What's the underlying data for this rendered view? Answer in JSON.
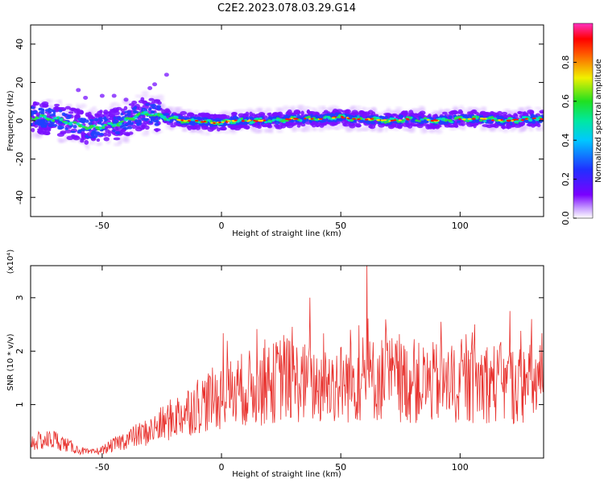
{
  "title": "C2E2.2023.078.03.29.G14",
  "colors": {
    "snr_line": "#e8322e",
    "spectrogram_low": "#6a00ff",
    "spectrogram_mid": "#00e0c0",
    "spectrogram_high": "#ff0000"
  },
  "chart_data": [
    {
      "type": "heatmap",
      "name": "spectrogram",
      "xlabel": "Height of straight line (km)",
      "ylabel": "Frequency (Hz)",
      "xlim": [
        -80,
        135
      ],
      "ylim": [
        -50,
        50
      ],
      "xticks": [
        -50,
        0,
        50,
        100
      ],
      "yticks": [
        -40,
        -20,
        0,
        20,
        40
      ],
      "grid": false,
      "colorbar": {
        "label": "Normalized spectral amplitude",
        "range": [
          0,
          1
        ],
        "ticks": [
          0.0,
          0.2,
          0.4,
          0.6,
          0.8
        ],
        "colormap": "rainbow (violet-blue-cyan-green-yellow-red-magenta)"
      },
      "ridge": {
        "x": [
          -78,
          -70,
          -60,
          -55,
          -50,
          -45,
          -40,
          -35,
          -30,
          -25,
          -20,
          -15,
          -10,
          -5,
          0,
          5,
          10,
          20,
          30,
          40,
          50,
          55,
          60,
          70,
          80,
          90,
          100,
          110,
          120,
          130,
          135
        ],
        "y": [
          2,
          1,
          -2,
          -4,
          -3,
          -2,
          0,
          3,
          4,
          2,
          1,
          0,
          0,
          -1,
          -1,
          0,
          0,
          0,
          1,
          1,
          2,
          1,
          1,
          0,
          1,
          0,
          1,
          1,
          0,
          1,
          1
        ]
      }
    },
    {
      "type": "line",
      "name": "snr",
      "xlabel": "Height of straight line (km)",
      "ylabel": "SNR (10 * v/v)",
      "scale_label": "(x10⁴)",
      "xlim": [
        -80,
        135
      ],
      "ylim": [
        0,
        3.6
      ],
      "xticks": [
        -50,
        0,
        50,
        100
      ],
      "yticks": [
        1,
        2,
        3
      ],
      "grid": false,
      "envelope": {
        "x": [
          -80,
          -70,
          -60,
          -55,
          -50,
          -40,
          -30,
          -20,
          -10,
          0,
          10,
          20,
          25,
          30,
          40,
          50,
          60,
          70,
          80,
          90,
          100,
          110,
          120,
          130,
          135
        ],
        "y": [
          0.3,
          0.35,
          0.15,
          0.1,
          0.15,
          0.35,
          0.5,
          0.75,
          1.0,
          1.15,
          1.3,
          1.35,
          1.5,
          1.45,
          1.35,
          1.4,
          1.45,
          1.5,
          1.4,
          1.4,
          1.35,
          1.45,
          1.35,
          1.4,
          1.4
        ]
      },
      "peaks": [
        {
          "x": 37,
          "y": 3.0
        },
        {
          "x": 61,
          "y": 3.6
        },
        {
          "x": 121,
          "y": 2.75
        },
        {
          "x": 130,
          "y": 2.6
        },
        {
          "x": 92,
          "y": 2.55
        },
        {
          "x": 106,
          "y": 2.5
        },
        {
          "x": 26,
          "y": 2.3
        },
        {
          "x": 54,
          "y": 2.4
        }
      ]
    }
  ]
}
